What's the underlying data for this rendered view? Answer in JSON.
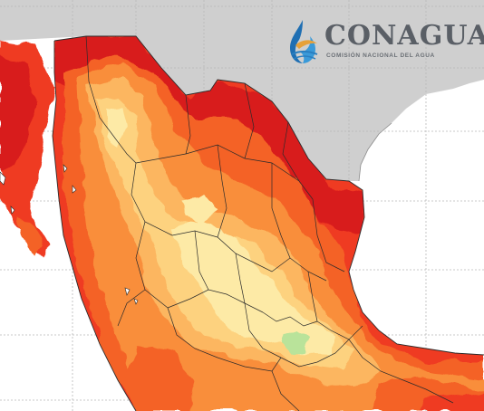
{
  "logo": {
    "name": "CONAGUA",
    "subtitle": "COMISIÓN NACIONAL DEL AGUA"
  },
  "colors": {
    "ocean": "#ffffff",
    "land_foreign": "#cfcfcf",
    "grid": "#b9b9b9",
    "hot_dark_red": "#d81b1e",
    "hot_red": "#ef3a21",
    "hot_orange_red": "#f46226",
    "orange": "#f98e3b",
    "light_orange": "#fcb660",
    "yellow_orange": "#fdd27f",
    "pale_yellow": "#fdeaa6",
    "green": "#b9e39a",
    "borders": "#2b2b2b"
  }
}
